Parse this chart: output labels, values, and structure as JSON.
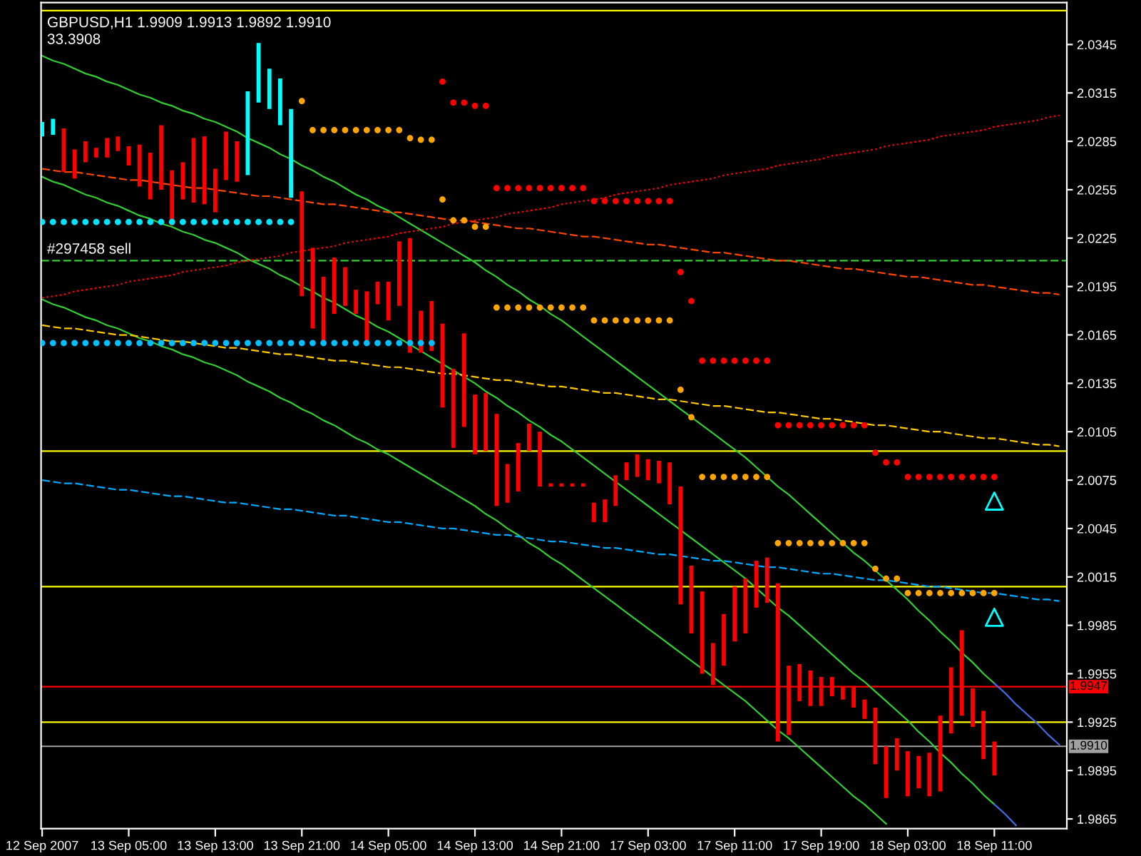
{
  "chart_data": {
    "type": "bar",
    "title": "GBPUSD,H1 1.9909 1.9913 1.9892 1.9910",
    "subtitle": "33.3908",
    "categories": [
      "12 Sep 2007",
      null,
      null,
      null,
      null,
      null,
      null,
      null,
      "13 Sep 05:00",
      null,
      null,
      null,
      null,
      null,
      null,
      null,
      "13 Sep 13:00",
      null,
      null,
      null,
      null,
      null,
      null,
      null,
      "13 Sep 21:00",
      null,
      null,
      null,
      null,
      null,
      null,
      null,
      "14 Sep 05:00",
      null,
      null,
      null,
      null,
      null,
      null,
      null,
      "14 Sep 13:00",
      null,
      null,
      null,
      null,
      null,
      null,
      null,
      "14 Sep 21:00",
      null,
      null,
      null,
      null,
      null,
      null,
      null,
      "17 Sep 03:00",
      null,
      null,
      null,
      null,
      null,
      null,
      null,
      "17 Sep 11:00",
      null,
      null,
      null,
      null,
      null,
      null,
      null,
      "17 Sep 19:00",
      null,
      null,
      null,
      null,
      null,
      null,
      null,
      "18 Sep 03:00",
      null,
      null,
      null,
      null,
      null,
      null,
      null,
      "18 Sep 11:00",
      null,
      null,
      null,
      null,
      null,
      null
    ],
    "base": [
      2.0288,
      2.0289,
      2.0266,
      2.0262,
      2.0272,
      2.0275,
      2.0275,
      2.0279,
      2.027,
      2.0257,
      2.0249,
      2.0255,
      2.0233,
      2.0249,
      2.0247,
      2.0246,
      2.0241,
      2.0261,
      2.026,
      2.0264,
      2.0309,
      2.0305,
      2.0295,
      2.025,
      2.0189,
      2.0169,
      2.0161,
      2.0178,
      2.0183,
      2.0178,
      2.016,
      2.0184,
      2.0174,
      2.0183,
      2.0154,
      2.0154,
      2.0155,
      2.012,
      2.0095,
      2.0108,
      2.0091,
      2.0093,
      2.0059,
      2.0061,
      2.0068,
      2.0093,
      2.0071,
      2.0071,
      2.0071,
      2.0071,
      2.0071,
      2.0049,
      2.0049,
      2.0059,
      2.0075,
      2.0077,
      2.0075,
      2.0073,
      2.006,
      1.9998,
      1.998,
      1.9955,
      1.9948,
      1.996,
      1.9975,
      1.998,
      1.9996,
      1.9999,
      1.9913,
      1.9917,
      1.9938,
      1.9935,
      1.9935,
      1.9941,
      1.9939,
      1.9934,
      1.9927,
      1.9899,
      1.9878,
      1.9895,
      1.9879,
      1.9884,
      1.9879,
      1.9882,
      1.9918,
      1.9929,
      1.9922,
      1.9902,
      1.9892,
      null,
      null,
      null,
      null,
      null,
      null
    ],
    "values": [
      0.0009,
      0.001,
      0.0027,
      0.0018,
      0.0013,
      0.0006,
      0.0012,
      0.0009,
      0.0012,
      0.0026,
      0.0029,
      0.004,
      0.0034,
      0.0023,
      0.004,
      0.0042,
      0.0027,
      0.003,
      0.0025,
      0.0052,
      0.0037,
      0.0025,
      0.0029,
      0.0055,
      0.0065,
      0.005,
      0.004,
      0.0035,
      0.0024,
      0.0015,
      0.0032,
      0.0014,
      0.0024,
      0.004,
      0.0071,
      0.0026,
      0.0031,
      0.0052,
      0.0049,
      0.0058,
      0.0037,
      0.0036,
      0.0057,
      0.0024,
      0.003,
      0.0017,
      0.0034,
      0.0002,
      0.0002,
      0.0002,
      0.0002,
      0.0012,
      0.0014,
      0.0019,
      0.0011,
      0.0014,
      0.0013,
      0.0014,
      0.0026,
      0.0073,
      0.0042,
      0.0051,
      0.0026,
      0.0032,
      0.0034,
      0.0034,
      0.0029,
      0.0028,
      0.0098,
      0.0043,
      0.0023,
      0.0022,
      0.0018,
      0.0012,
      0.0008,
      0.0013,
      0.0012,
      0.0035,
      0.0032,
      0.002,
      0.0028,
      0.002,
      0.0027,
      0.0047,
      0.0041,
      0.0053,
      0.0024,
      0.003,
      0.0021,
      null,
      null,
      null,
      null,
      null,
      null
    ],
    "colors": [
      "#00ffff",
      "#00ffff",
      "#ff0000",
      "#ff0000",
      "#ff0000",
      "#ff0000",
      "#ff0000",
      "#ff0000",
      "#ff0000",
      "#ff0000",
      "#ff0000",
      "#ff0000",
      "#ff0000",
      "#ff0000",
      "#ff0000",
      "#ff0000",
      "#ff0000",
      "#ff0000",
      "#ff0000",
      "#00ffff",
      "#00ffff",
      "#00ffff",
      "#00ffff",
      "#00ffff",
      "#ff0000",
      "#ff0000",
      "#ff0000",
      "#ff0000",
      "#ff0000",
      "#ff0000",
      "#ff0000",
      "#ff0000",
      "#ff0000",
      "#ff0000",
      "#ff0000",
      "#ff0000",
      "#ff0000",
      "#ff0000",
      "#ff0000",
      "#ff0000",
      "#ff0000",
      "#ff0000",
      "#ff0000",
      "#ff0000",
      "#ff0000",
      "#ff0000",
      "#ff0000",
      "#ff0000",
      "#ff0000",
      "#ff0000",
      "#ff0000",
      "#ff0000",
      "#ff0000",
      "#ff0000",
      "#ff0000",
      "#ff0000",
      "#ff0000",
      "#ff0000",
      "#ff0000",
      "#ff0000",
      "#ff0000",
      "#ff0000",
      "#ff0000",
      "#ff0000",
      "#ff0000",
      "#ff0000",
      "#ff0000",
      "#ff0000",
      "#ff0000",
      "#ff0000",
      "#ff0000",
      "#ff0000",
      "#ff0000",
      "#ff0000",
      "#ff0000",
      "#ff0000",
      "#ff0000",
      "#ff0000",
      "#ff0000",
      "#ff0000",
      "#ff0000",
      "#ff0000",
      "#ff0000",
      "#ff0000",
      "#ff0000",
      "#ff0000",
      "#ff0000",
      "#ff0000",
      "#ff0000",
      null,
      null,
      null,
      null,
      null,
      null
    ],
    "series": [
      {
        "type": "line",
        "color": "#32cd32",
        "line_style": "solid",
        "values": [
          2.0338,
          2.0335,
          2.0333,
          2.033,
          2.0327,
          2.0325,
          2.0322,
          2.032,
          2.0317,
          2.0314,
          2.0312,
          2.0309,
          2.0307,
          2.0304,
          2.0302,
          2.0299,
          2.0297,
          2.0294,
          2.0291,
          2.0287,
          2.0284,
          2.0281,
          2.0277,
          2.0274,
          2.027,
          2.0267,
          2.0263,
          2.026,
          2.0256,
          2.0252,
          2.0249,
          2.0245,
          2.0242,
          2.0238,
          2.0234,
          2.023,
          2.0226,
          2.0222,
          2.0218,
          2.0214,
          2.021,
          2.0205,
          2.0201,
          2.0196,
          2.0192,
          2.0187,
          2.0183,
          2.0178,
          2.0174,
          2.0169,
          2.0164,
          2.0159,
          2.0154,
          2.0149,
          2.0144,
          2.0139,
          2.0134,
          2.0129,
          2.0124,
          2.0119,
          2.0114,
          2.0109,
          2.0104,
          2.0099,
          2.0094,
          2.0089,
          2.0083,
          2.0077,
          2.0071,
          2.0066,
          2.006,
          2.0054,
          2.0048,
          2.0042,
          2.0036,
          2.003,
          2.0025,
          2.0019,
          2.0013,
          2.0007,
          2.0001,
          1.9994,
          1.9988,
          1.9981,
          1.9975,
          1.9968,
          1.9962,
          1.9955,
          1.9949,
          null,
          null,
          null,
          null,
          null,
          null
        ]
      },
      {
        "type": "line",
        "color": "#4169e1",
        "line_style": "solid",
        "values": [
          null,
          null,
          null,
          null,
          null,
          null,
          null,
          null,
          null,
          null,
          null,
          null,
          null,
          null,
          null,
          null,
          null,
          null,
          null,
          null,
          null,
          null,
          null,
          null,
          null,
          null,
          null,
          null,
          null,
          null,
          null,
          null,
          null,
          null,
          null,
          null,
          null,
          null,
          null,
          null,
          null,
          null,
          null,
          null,
          null,
          null,
          null,
          null,
          null,
          null,
          null,
          null,
          null,
          null,
          null,
          null,
          null,
          null,
          null,
          null,
          null,
          null,
          null,
          null,
          null,
          null,
          null,
          null,
          null,
          null,
          null,
          null,
          null,
          null,
          null,
          null,
          null,
          null,
          null,
          null,
          null,
          null,
          null,
          null,
          null,
          null,
          null,
          null,
          1.9949,
          1.9943,
          1.9936,
          1.993,
          1.9924,
          1.9917,
          1.9911
        ]
      },
      {
        "type": "line",
        "color": "#32cd32",
        "line_style": "solid",
        "values": [
          2.0263,
          2.026,
          2.0258,
          2.0255,
          2.0252,
          2.025,
          2.0247,
          2.0245,
          2.0242,
          2.0239,
          2.0237,
          2.0234,
          2.0232,
          2.0229,
          2.0227,
          2.0224,
          2.0222,
          2.0219,
          2.0216,
          2.0212,
          2.0209,
          2.0206,
          2.0202,
          2.0199,
          2.0195,
          2.0192,
          2.0188,
          2.0185,
          2.0181,
          2.0177,
          2.0174,
          2.017,
          2.0167,
          2.0163,
          2.0159,
          2.0155,
          2.0151,
          2.0147,
          2.0143,
          2.0139,
          2.0135,
          2.013,
          2.0126,
          2.0121,
          2.0117,
          2.0112,
          2.0108,
          2.0103,
          2.0099,
          2.0094,
          2.0089,
          2.0084,
          2.0079,
          2.0074,
          2.0069,
          2.0064,
          2.0059,
          2.0054,
          2.0049,
          2.0044,
          2.0039,
          2.0034,
          2.0029,
          2.0024,
          2.0019,
          2.0014,
          2.0008,
          2.0002,
          1.9996,
          1.9991,
          1.9985,
          1.9979,
          1.9973,
          1.9967,
          1.9961,
          1.9955,
          1.995,
          1.9944,
          1.9938,
          1.9932,
          1.9926,
          1.9919,
          1.9913,
          1.9906,
          1.99,
          1.9893,
          1.9887,
          1.988,
          1.9874,
          null,
          null,
          null,
          null,
          null,
          null
        ]
      },
      {
        "type": "line",
        "color": "#4169e1",
        "line_style": "solid",
        "values": [
          null,
          null,
          null,
          null,
          null,
          null,
          null,
          null,
          null,
          null,
          null,
          null,
          null,
          null,
          null,
          null,
          null,
          null,
          null,
          null,
          null,
          null,
          null,
          null,
          null,
          null,
          null,
          null,
          null,
          null,
          null,
          null,
          null,
          null,
          null,
          null,
          null,
          null,
          null,
          null,
          null,
          null,
          null,
          null,
          null,
          null,
          null,
          null,
          null,
          null,
          null,
          null,
          null,
          null,
          null,
          null,
          null,
          null,
          null,
          null,
          null,
          null,
          null,
          null,
          null,
          null,
          null,
          null,
          null,
          null,
          null,
          null,
          null,
          null,
          null,
          null,
          null,
          null,
          null,
          null,
          null,
          null,
          null,
          null,
          null,
          null,
          null,
          null,
          1.9874,
          1.9868,
          1.9861,
          null,
          null,
          null,
          null
        ]
      },
      {
        "type": "line",
        "color": "#32cd32",
        "line_style": "solid",
        "values": [
          2.0187,
          2.0184,
          2.0182,
          2.0179,
          2.0176,
          2.0174,
          2.0171,
          2.0169,
          2.0166,
          2.0163,
          2.0161,
          2.0158,
          2.0156,
          2.0153,
          2.0151,
          2.0148,
          2.0146,
          2.0143,
          2.014,
          2.0136,
          2.0133,
          2.013,
          2.0126,
          2.0123,
          2.0119,
          2.0116,
          2.0112,
          2.0109,
          2.0105,
          2.0101,
          2.0098,
          2.0094,
          2.0091,
          2.0087,
          2.0083,
          2.0079,
          2.0075,
          2.0071,
          2.0067,
          2.0063,
          2.0059,
          2.0054,
          2.005,
          2.0045,
          2.0041,
          2.0036,
          2.0032,
          2.0027,
          2.0023,
          2.0018,
          2.0013,
          2.0008,
          2.0003,
          1.9998,
          1.9993,
          1.9988,
          1.9983,
          1.9978,
          1.9973,
          1.9968,
          1.9963,
          1.9958,
          1.9953,
          1.9948,
          1.9943,
          1.9938,
          1.9932,
          1.9926,
          1.992,
          1.9915,
          1.9909,
          1.9903,
          1.9897,
          1.9891,
          1.9885,
          1.9879,
          1.9874,
          1.9868,
          1.9862,
          null,
          null,
          null,
          null,
          null,
          null,
          null,
          null,
          null,
          null,
          null,
          null,
          null,
          null,
          null,
          null
        ]
      },
      {
        "type": "line",
        "color": "#ff0000",
        "line_style": "dotted",
        "values": [
          2.0188,
          2.0189,
          2.019,
          2.0192,
          2.0193,
          2.0194,
          2.0195,
          2.0196,
          2.0198,
          2.0199,
          2.02,
          2.0201,
          2.0202,
          2.0204,
          2.0205,
          2.0206,
          2.0207,
          2.0208,
          2.021,
          2.0211,
          2.0212,
          2.0213,
          2.0214,
          2.0216,
          2.0217,
          2.0218,
          2.0219,
          2.022,
          2.0222,
          2.0223,
          2.0224,
          2.0225,
          2.0226,
          2.0228,
          2.0229,
          2.023,
          2.0231,
          2.0232,
          2.0234,
          2.0235,
          2.0236,
          2.0237,
          2.0238,
          2.024,
          2.0241,
          2.0242,
          2.0243,
          2.0244,
          2.0246,
          2.0247,
          2.0248,
          2.0249,
          2.025,
          2.0252,
          2.0253,
          2.0254,
          2.0255,
          2.0256,
          2.0258,
          2.0259,
          2.026,
          2.0261,
          2.0262,
          2.0264,
          2.0265,
          2.0266,
          2.0267,
          2.0268,
          2.027,
          2.0271,
          2.0272,
          2.0273,
          2.0274,
          2.0276,
          2.0277,
          2.0278,
          2.0279,
          2.028,
          2.0282,
          2.0283,
          2.0284,
          2.0285,
          2.0286,
          2.0288,
          2.0289,
          2.029,
          2.0291,
          2.0292,
          2.0294,
          2.0295,
          2.0296,
          2.0297,
          2.0298,
          2.03,
          2.0301
        ]
      },
      {
        "type": "line",
        "color": "#ff4500",
        "line_style": "dashed",
        "values": [
          2.0268,
          2.0267,
          2.0266,
          2.0266,
          2.0265,
          2.0264,
          2.0263,
          2.0262,
          2.0261,
          2.0261,
          2.026,
          2.0259,
          2.0258,
          2.0257,
          2.0256,
          2.0256,
          2.0255,
          2.0254,
          2.0253,
          2.0252,
          2.0251,
          2.0251,
          2.025,
          2.0249,
          2.0248,
          2.0247,
          2.0246,
          2.0246,
          2.0245,
          2.0244,
          2.0243,
          2.0242,
          2.0241,
          2.0241,
          2.024,
          2.0239,
          2.0238,
          2.0237,
          2.0236,
          2.0236,
          2.0235,
          2.0234,
          2.0233,
          2.0232,
          2.0231,
          2.0231,
          2.023,
          2.0229,
          2.0228,
          2.0227,
          2.0226,
          2.0226,
          2.0225,
          2.0224,
          2.0223,
          2.0222,
          2.0221,
          2.0221,
          2.022,
          2.0219,
          2.0218,
          2.0217,
          2.0216,
          2.0216,
          2.0215,
          2.0214,
          2.0213,
          2.0212,
          2.0211,
          2.0211,
          2.021,
          2.0209,
          2.0208,
          2.0207,
          2.0206,
          2.0206,
          2.0205,
          2.0204,
          2.0203,
          2.0202,
          2.0201,
          2.0201,
          2.02,
          2.0199,
          2.0198,
          2.0197,
          2.0196,
          2.0196,
          2.0195,
          2.0194,
          2.0193,
          2.0192,
          2.0191,
          2.0191,
          2.019
        ]
      },
      {
        "type": "line",
        "color": "#ffc800",
        "line_style": "dashed",
        "values": [
          2.0171,
          2.017,
          2.0169,
          2.0169,
          2.0168,
          2.0167,
          2.0166,
          2.0165,
          2.0165,
          2.0164,
          2.0163,
          2.0162,
          2.0161,
          2.0161,
          2.016,
          2.0159,
          2.0158,
          2.0157,
          2.0157,
          2.0156,
          2.0155,
          2.0154,
          2.0153,
          2.0153,
          2.0152,
          2.0151,
          2.015,
          2.0149,
          2.0149,
          2.0148,
          2.0147,
          2.0146,
          2.0145,
          2.0145,
          2.0144,
          2.0143,
          2.0142,
          2.0141,
          2.0141,
          2.014,
          2.0139,
          2.0138,
          2.0137,
          2.0137,
          2.0136,
          2.0135,
          2.0134,
          2.0133,
          2.0133,
          2.0132,
          2.0131,
          2.013,
          2.0129,
          2.0129,
          2.0128,
          2.0127,
          2.0126,
          2.0125,
          2.0125,
          2.0124,
          2.0123,
          2.0122,
          2.0121,
          2.0121,
          2.012,
          2.0119,
          2.0118,
          2.0117,
          2.0117,
          2.0116,
          2.0115,
          2.0114,
          2.0113,
          2.0113,
          2.0112,
          2.0111,
          2.011,
          2.0109,
          2.0109,
          2.0108,
          2.0107,
          2.0106,
          2.0105,
          2.0105,
          2.0104,
          2.0103,
          2.0102,
          2.0101,
          2.0101,
          2.01,
          2.0099,
          2.0098,
          2.0097,
          2.0097,
          2.0096
        ]
      },
      {
        "type": "line",
        "color": "#00a8ff",
        "line_style": "dashed",
        "values": [
          2.0075,
          2.0074,
          2.0073,
          2.0073,
          2.0072,
          2.0071,
          2.007,
          2.0069,
          2.0069,
          2.0068,
          2.0067,
          2.0066,
          2.0065,
          2.0065,
          2.0064,
          2.0063,
          2.0062,
          2.0061,
          2.0061,
          2.006,
          2.0059,
          2.0058,
          2.0057,
          2.0057,
          2.0056,
          2.0055,
          2.0054,
          2.0053,
          2.0053,
          2.0052,
          2.0051,
          2.005,
          2.0049,
          2.0049,
          2.0048,
          2.0047,
          2.0046,
          2.0045,
          2.0045,
          2.0044,
          2.0043,
          2.0042,
          2.0041,
          2.0041,
          2.004,
          2.0039,
          2.0038,
          2.0037,
          2.0037,
          2.0036,
          2.0035,
          2.0034,
          2.0033,
          2.0033,
          2.0032,
          2.0031,
          2.003,
          2.0029,
          2.0029,
          2.0028,
          2.0027,
          2.0026,
          2.0025,
          2.0025,
          2.0024,
          2.0023,
          2.0022,
          2.0021,
          2.0021,
          2.002,
          2.0019,
          2.0018,
          2.0017,
          2.0017,
          2.0016,
          2.0015,
          2.0014,
          2.0013,
          2.0013,
          2.0012,
          2.0011,
          2.001,
          2.0009,
          2.0009,
          2.0008,
          2.0007,
          2.0006,
          2.0005,
          2.0005,
          2.0004,
          2.0003,
          2.0002,
          2.0001,
          2.0001,
          2.0
        ]
      },
      {
        "type": "scatter",
        "color": "#00e5ff",
        "marker": "circle",
        "values": [
          2.0235,
          2.0235,
          2.0235,
          2.0235,
          2.0235,
          2.0235,
          2.0235,
          2.0235,
          2.0235,
          2.0235,
          2.0235,
          2.0235,
          2.0235,
          2.0235,
          2.0235,
          2.0235,
          2.0235,
          2.0235,
          2.0235,
          2.0235,
          2.0235,
          2.0235,
          2.0235,
          2.0235,
          null,
          null,
          null,
          null,
          null,
          null,
          null,
          null,
          null,
          null,
          null,
          null,
          null,
          null,
          null,
          null,
          null,
          null,
          null,
          null,
          null,
          null,
          null,
          null,
          null,
          null,
          null,
          null,
          null,
          null,
          null,
          null,
          null,
          null,
          null,
          null,
          null,
          null,
          null,
          null,
          null,
          null,
          null,
          null,
          null,
          null,
          null,
          null,
          null,
          null,
          null,
          null,
          null,
          null,
          null,
          null,
          null,
          null,
          null,
          null,
          null,
          null,
          null,
          null,
          null,
          null,
          null,
          null,
          null,
          null,
          null
        ]
      },
      {
        "type": "scatter",
        "color": "#00bfff",
        "marker": "circle",
        "values": [
          2.016,
          2.016,
          2.016,
          2.016,
          2.016,
          2.016,
          2.016,
          2.016,
          2.016,
          2.016,
          2.016,
          2.016,
          2.016,
          2.016,
          2.016,
          2.016,
          2.016,
          2.016,
          2.016,
          2.016,
          2.016,
          2.016,
          2.016,
          2.016,
          2.016,
          2.016,
          2.016,
          2.016,
          2.016,
          2.016,
          2.016,
          2.016,
          2.016,
          2.016,
          2.016,
          2.016,
          2.016,
          null,
          null,
          null,
          null,
          null,
          null,
          null,
          null,
          null,
          null,
          null,
          null,
          null,
          null,
          null,
          null,
          null,
          null,
          null,
          null,
          null,
          null,
          null,
          null,
          null,
          null,
          null,
          null,
          null,
          null,
          null,
          null,
          null,
          null,
          null,
          null,
          null,
          null,
          null,
          null,
          null,
          null,
          null,
          null,
          null,
          null,
          null,
          null,
          null,
          null,
          null,
          null,
          null,
          null,
          null,
          null,
          null,
          null
        ]
      },
      {
        "type": "scatter",
        "color": "#ffa500",
        "marker": "circle",
        "values": [
          null,
          null,
          null,
          null,
          null,
          null,
          null,
          null,
          null,
          null,
          null,
          null,
          null,
          null,
          null,
          null,
          null,
          null,
          null,
          null,
          null,
          null,
          null,
          null,
          2.031,
          2.0292,
          2.0292,
          2.0292,
          2.0292,
          2.0292,
          2.0292,
          2.0292,
          2.0292,
          2.0292,
          2.0287,
          2.0286,
          2.0286,
          2.0249,
          2.0236,
          2.0236,
          2.0232,
          2.0232,
          2.0182,
          2.0182,
          2.0182,
          2.0182,
          2.0182,
          2.0182,
          2.0182,
          2.0182,
          2.0182,
          2.0174,
          2.0174,
          2.0174,
          2.0174,
          2.0174,
          2.0174,
          2.0174,
          2.0174,
          2.0131,
          2.0114,
          2.0077,
          2.0077,
          2.0077,
          2.0077,
          2.0077,
          2.0077,
          2.0077,
          2.0036,
          2.0036,
          2.0036,
          2.0036,
          2.0036,
          2.0036,
          2.0036,
          2.0036,
          2.0036,
          2.002,
          2.0014,
          2.0014,
          2.0005,
          2.0005,
          2.0005,
          2.0005,
          2.0005,
          2.0005,
          2.0005,
          2.0005,
          2.0005,
          null,
          null,
          null,
          null,
          null,
          null
        ]
      },
      {
        "type": "scatter",
        "color": "#ff0000",
        "marker": "circle",
        "values": [
          null,
          null,
          null,
          null,
          null,
          null,
          null,
          null,
          null,
          null,
          null,
          null,
          null,
          null,
          null,
          null,
          null,
          null,
          null,
          null,
          null,
          null,
          null,
          null,
          null,
          null,
          null,
          null,
          null,
          null,
          null,
          null,
          null,
          null,
          null,
          null,
          null,
          2.0322,
          2.0309,
          2.0309,
          2.0307,
          2.0307,
          2.0256,
          2.0256,
          2.0256,
          2.0256,
          2.0256,
          2.0256,
          2.0256,
          2.0256,
          2.0256,
          2.0248,
          2.0248,
          2.0248,
          2.0248,
          2.0248,
          2.0248,
          2.0248,
          2.0248,
          2.0204,
          2.0186,
          2.0149,
          2.0149,
          2.0149,
          2.0149,
          2.0149,
          2.0149,
          2.0149,
          2.0109,
          2.0109,
          2.0109,
          2.0109,
          2.0109,
          2.0109,
          2.0109,
          2.0109,
          2.0109,
          2.0092,
          2.0086,
          2.0086,
          2.0077,
          2.0077,
          2.0077,
          2.0077,
          2.0077,
          2.0077,
          2.0077,
          2.0077,
          2.0077,
          null,
          null,
          null,
          null,
          null,
          null
        ]
      },
      {
        "type": "scatter",
        "color": "#00ffff",
        "marker": "triangle",
        "values": [
          null,
          null,
          null,
          null,
          null,
          null,
          null,
          null,
          null,
          null,
          null,
          null,
          null,
          null,
          null,
          null,
          null,
          null,
          null,
          null,
          null,
          null,
          null,
          null,
          null,
          null,
          null,
          null,
          null,
          null,
          null,
          null,
          null,
          null,
          null,
          null,
          null,
          null,
          null,
          null,
          null,
          null,
          null,
          null,
          null,
          null,
          null,
          null,
          null,
          null,
          null,
          null,
          null,
          null,
          null,
          null,
          null,
          null,
          null,
          null,
          null,
          null,
          null,
          null,
          null,
          null,
          null,
          null,
          null,
          null,
          null,
          null,
          null,
          null,
          null,
          null,
          null,
          null,
          null,
          null,
          null,
          null,
          null,
          null,
          null,
          null,
          null,
          null,
          2.0062,
          null,
          null,
          null,
          null,
          null,
          null
        ]
      },
      {
        "type": "scatter",
        "color": "#00ffff",
        "marker": "triangle",
        "values": [
          null,
          null,
          null,
          null,
          null,
          null,
          null,
          null,
          null,
          null,
          null,
          null,
          null,
          null,
          null,
          null,
          null,
          null,
          null,
          null,
          null,
          null,
          null,
          null,
          null,
          null,
          null,
          null,
          null,
          null,
          null,
          null,
          null,
          null,
          null,
          null,
          null,
          null,
          null,
          null,
          null,
          null,
          null,
          null,
          null,
          null,
          null,
          null,
          null,
          null,
          null,
          null,
          null,
          null,
          null,
          null,
          null,
          null,
          null,
          null,
          null,
          null,
          null,
          null,
          null,
          null,
          null,
          null,
          null,
          null,
          null,
          null,
          null,
          null,
          null,
          null,
          null,
          null,
          null,
          null,
          null,
          null,
          null,
          null,
          null,
          null,
          null,
          null,
          1.999,
          null,
          null,
          null,
          null,
          null,
          null
        ]
      }
    ],
    "ref_lines": [
      {
        "axis": "y",
        "value": 2.0366,
        "color": "#ffff00"
      },
      {
        "axis": "y",
        "value": 2.0211,
        "color": "#32cd32",
        "line_style": "dashed",
        "label": "#297458 sell"
      },
      {
        "axis": "y",
        "value": 2.0093,
        "color": "#ffff00"
      },
      {
        "axis": "y",
        "value": 2.0009,
        "color": "#ffff00"
      },
      {
        "axis": "y",
        "value": 1.9947,
        "color": "#ff0000",
        "label": "1.9947"
      },
      {
        "axis": "y",
        "value": 1.9925,
        "color": "#ffff00"
      },
      {
        "axis": "y",
        "value": 1.991,
        "color": "#a0a0a0",
        "label": "1.9910"
      }
    ],
    "ylim": [
      1.9859,
      2.0371
    ],
    "yticks": [
      2.0345,
      2.0315,
      2.0285,
      2.0255,
      2.0225,
      2.0195,
      2.0165,
      2.0135,
      2.0105,
      2.0075,
      2.0045,
      2.0015,
      1.9985,
      1.9955,
      1.9925,
      1.9895,
      1.9865
    ]
  }
}
